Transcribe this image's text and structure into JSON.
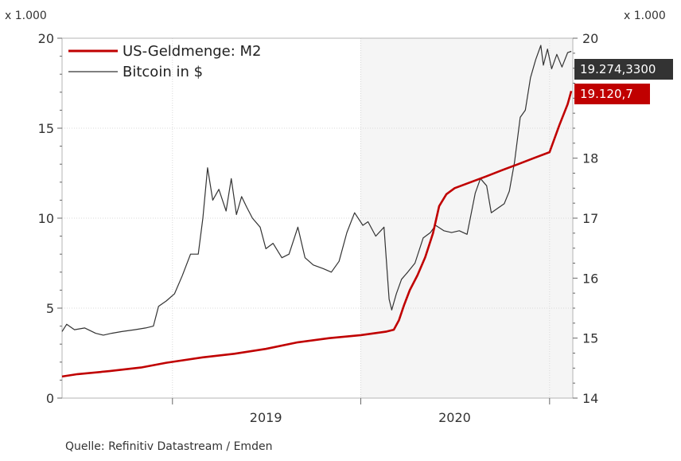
{
  "chart_data": {
    "type": "line",
    "left_axis": {
      "multiplier_label": "x 1.000",
      "range": [
        0,
        20
      ],
      "ticks": [
        0,
        5,
        10,
        15,
        20
      ],
      "tick_labels": [
        "0",
        "5",
        "10",
        "15",
        "20"
      ]
    },
    "right_axis": {
      "multiplier_label": "x 1.000",
      "range": [
        14,
        20
      ],
      "ticks": [
        14,
        15,
        16,
        17,
        18,
        19,
        20
      ],
      "tick_labels": [
        "14",
        "15",
        "16",
        "17",
        "18",
        "19",
        "20"
      ]
    },
    "x_axis": {
      "range": [
        "2018-06-01",
        "2021-02-15"
      ],
      "year_boundaries": [
        "2019-01-01",
        "2020-01-01",
        "2021-01-01"
      ],
      "year_labels": [
        {
          "label": "2019",
          "date": "2019-07-01"
        },
        {
          "label": "2020",
          "date": "2020-07-01"
        }
      ]
    },
    "shaded_period": {
      "start": "2019-12-31",
      "end": "2021-02-15"
    },
    "grid": true,
    "legend_position": "top-left",
    "series": [
      {
        "name": "US-Geldmenge: M2",
        "color": "#c00000",
        "axis": "right",
        "points": [
          [
            "2018-06-01",
            14.36
          ],
          [
            "2018-07-01",
            14.4
          ],
          [
            "2018-09-01",
            14.45
          ],
          [
            "2018-11-01",
            14.51
          ],
          [
            "2018-12-20",
            14.59
          ],
          [
            "2019-03-01",
            14.68
          ],
          [
            "2019-05-01",
            14.74
          ],
          [
            "2019-07-01",
            14.82
          ],
          [
            "2019-09-01",
            14.93
          ],
          [
            "2019-11-01",
            15.0
          ],
          [
            "2020-01-01",
            15.05
          ],
          [
            "2020-02-20",
            15.11
          ],
          [
            "2020-03-05",
            15.14
          ],
          [
            "2020-03-15",
            15.3
          ],
          [
            "2020-03-25",
            15.55
          ],
          [
            "2020-04-05",
            15.8
          ],
          [
            "2020-04-20",
            16.05
          ],
          [
            "2020-05-05",
            16.35
          ],
          [
            "2020-05-20",
            16.75
          ],
          [
            "2020-06-01",
            17.2
          ],
          [
            "2020-06-15",
            17.4
          ],
          [
            "2020-07-01",
            17.5
          ],
          [
            "2020-08-01",
            17.6
          ],
          [
            "2020-09-01",
            17.7
          ],
          [
            "2020-10-01",
            17.8
          ],
          [
            "2020-11-01",
            17.9
          ],
          [
            "2020-12-01",
            18.0
          ],
          [
            "2021-01-01",
            18.1
          ],
          [
            "2021-01-20",
            18.55
          ],
          [
            "2021-02-05",
            18.9
          ],
          [
            "2021-02-12",
            19.12
          ]
        ]
      },
      {
        "name": "Bitcoin in $",
        "color": "#333333",
        "axis": "left",
        "points": [
          [
            "2018-06-01",
            3.7
          ],
          [
            "2018-06-10",
            4.1
          ],
          [
            "2018-06-25",
            3.8
          ],
          [
            "2018-07-15",
            3.9
          ],
          [
            "2018-08-05",
            3.6
          ],
          [
            "2018-08-20",
            3.5
          ],
          [
            "2018-09-05",
            3.6
          ],
          [
            "2018-09-25",
            3.7
          ],
          [
            "2018-10-20",
            3.8
          ],
          [
            "2018-11-10",
            3.9
          ],
          [
            "2018-11-25",
            4.0
          ],
          [
            "2018-12-05",
            5.1
          ],
          [
            "2018-12-20",
            5.4
          ],
          [
            "2019-01-05",
            5.8
          ],
          [
            "2019-01-20",
            6.8
          ],
          [
            "2019-02-05",
            8.0
          ],
          [
            "2019-02-20",
            8.0
          ],
          [
            "2019-03-01",
            10.0
          ],
          [
            "2019-03-10",
            12.8
          ],
          [
            "2019-03-20",
            11.0
          ],
          [
            "2019-04-01",
            11.6
          ],
          [
            "2019-04-15",
            10.4
          ],
          [
            "2019-04-25",
            12.2
          ],
          [
            "2019-05-05",
            10.2
          ],
          [
            "2019-05-15",
            11.2
          ],
          [
            "2019-05-25",
            10.6
          ],
          [
            "2019-06-05",
            10.0
          ],
          [
            "2019-06-20",
            9.5
          ],
          [
            "2019-07-01",
            8.3
          ],
          [
            "2019-07-15",
            8.6
          ],
          [
            "2019-08-01",
            7.8
          ],
          [
            "2019-08-15",
            8.0
          ],
          [
            "2019-09-01",
            9.5
          ],
          [
            "2019-09-15",
            7.8
          ],
          [
            "2019-10-01",
            7.4
          ],
          [
            "2019-10-20",
            7.2
          ],
          [
            "2019-11-05",
            7.0
          ],
          [
            "2019-11-20",
            7.6
          ],
          [
            "2019-12-05",
            9.2
          ],
          [
            "2019-12-20",
            10.3
          ],
          [
            "2020-01-05",
            9.6
          ],
          [
            "2020-01-15",
            9.8
          ],
          [
            "2020-01-30",
            9.0
          ],
          [
            "2020-02-15",
            9.5
          ],
          [
            "2020-02-25",
            5.5
          ],
          [
            "2020-03-01",
            4.9
          ],
          [
            "2020-03-10",
            5.8
          ],
          [
            "2020-03-20",
            6.6
          ],
          [
            "2020-04-01",
            7.0
          ],
          [
            "2020-04-15",
            7.5
          ],
          [
            "2020-05-01",
            8.9
          ],
          [
            "2020-05-15",
            9.2
          ],
          [
            "2020-05-25",
            9.6
          ],
          [
            "2020-06-10",
            9.3
          ],
          [
            "2020-06-25",
            9.2
          ],
          [
            "2020-07-10",
            9.3
          ],
          [
            "2020-07-25",
            9.1
          ],
          [
            "2020-08-10",
            11.4
          ],
          [
            "2020-08-20",
            12.2
          ],
          [
            "2020-09-01",
            11.8
          ],
          [
            "2020-09-10",
            10.3
          ],
          [
            "2020-09-25",
            10.6
          ],
          [
            "2020-10-05",
            10.8
          ],
          [
            "2020-10-15",
            11.5
          ],
          [
            "2020-10-25",
            13.1
          ],
          [
            "2020-11-05",
            15.6
          ],
          [
            "2020-11-15",
            16.0
          ],
          [
            "2020-11-25",
            17.8
          ],
          [
            "2020-12-05",
            18.8
          ],
          [
            "2020-12-15",
            19.6
          ],
          [
            "2020-12-20",
            18.5
          ],
          [
            "2020-12-28",
            19.4
          ],
          [
            "2021-01-05",
            18.3
          ],
          [
            "2021-01-15",
            19.1
          ],
          [
            "2021-01-25",
            18.4
          ],
          [
            "2021-02-05",
            19.2
          ],
          [
            "2021-02-12",
            19.27
          ]
        ]
      }
    ],
    "badges": [
      {
        "text": "19.274,3300",
        "color": "#333333"
      },
      {
        "text": "19.120,7",
        "color": "#c00000"
      }
    ]
  },
  "source": "Quelle: Refinitiv Datastream / Emden"
}
